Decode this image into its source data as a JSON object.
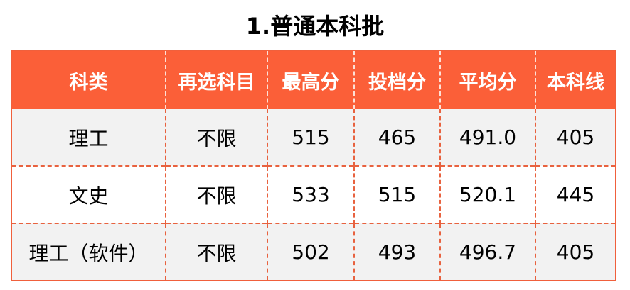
{
  "title": "1.普通本科批",
  "colors": {
    "header_bg": "#fb5f38",
    "border": "#e8623f",
    "row_alt": "#f2f2f2"
  },
  "table": {
    "headers": [
      "科类",
      "再选科目",
      "最高分",
      "投档分",
      "平均分",
      "本科线"
    ],
    "rows": [
      [
        "理工",
        "不限",
        "515",
        "465",
        "491.0",
        "405"
      ],
      [
        "文史",
        "不限",
        "533",
        "515",
        "520.1",
        "445"
      ],
      [
        "理工（软件）",
        "不限",
        "502",
        "493",
        "496.7",
        "405"
      ]
    ]
  }
}
